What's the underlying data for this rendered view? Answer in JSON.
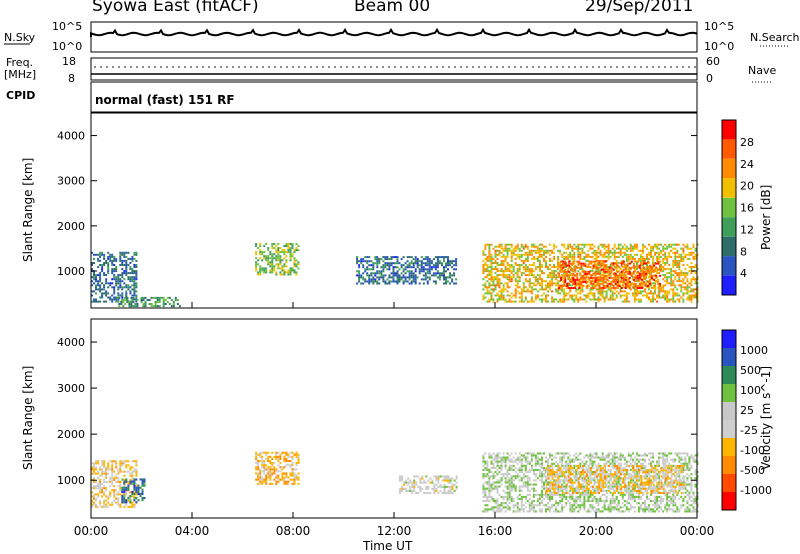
{
  "header": {
    "station": "Syowa East (fitACF)",
    "beam": "Beam 00",
    "date": "29/Sep/2011"
  },
  "top_panels": {
    "noise_left": "N.Sky",
    "noise_right": "N.Search",
    "noise_ticks_left": [
      "10^5",
      "10^0"
    ],
    "noise_ticks_right": [
      "10^5",
      "10^0"
    ],
    "freq_label_1": "Freq.",
    "freq_label_2": "[MHz]",
    "freq_ticks": [
      "18",
      "8"
    ],
    "nave_label": "Nave",
    "nave_ticks": [
      "60",
      "0"
    ],
    "cpid_label": "CPID",
    "cpid_text": "normal (fast) 151 RF"
  },
  "colors": {
    "power": [
      "#1e1eff",
      "#2a55c0",
      "#2e6e6a",
      "#3e9e5a",
      "#6ec23e",
      "#f0c000",
      "#ff8c00",
      "#ff5a00",
      "#ff0000"
    ],
    "velocity": [
      "#ff0000",
      "#ff4a00",
      "#ff8c00",
      "#ffb400",
      "#cfcfcf",
      "#c8c8c8",
      "#6ec23e",
      "#2e8b57",
      "#2a55c0",
      "#1e1eff"
    ]
  },
  "chart_data": [
    {
      "type": "heatmap",
      "title": "",
      "ylabel": "Slant Range [km]",
      "xlabel": "",
      "ylim": [
        180,
        4500
      ],
      "x_ticks": [],
      "y_ticks": [
        "1000",
        "2000",
        "3000",
        "4000"
      ],
      "colorbar": {
        "label": "Power [dB]",
        "ticks": [
          "4",
          "8",
          "12",
          "16",
          "20",
          "24",
          "28"
        ],
        "range": [
          0,
          32
        ]
      },
      "regions": [
        {
          "t0": 0.0,
          "t1": 1.8,
          "r0": 300,
          "r1": 1400,
          "value": 8
        },
        {
          "t0": 1.0,
          "t1": 3.5,
          "r0": 200,
          "r1": 400,
          "value": 12
        },
        {
          "t0": 6.5,
          "t1": 8.2,
          "r0": 900,
          "r1": 1600,
          "value": 16
        },
        {
          "t0": 10.5,
          "t1": 14.5,
          "r0": 700,
          "r1": 1300,
          "value": 8
        },
        {
          "t0": 15.5,
          "t1": 24.0,
          "r0": 300,
          "r1": 1600,
          "value": 20
        },
        {
          "t0": 18.5,
          "t1": 22.5,
          "r0": 600,
          "r1": 1200,
          "value": 26
        }
      ]
    },
    {
      "type": "heatmap",
      "title": "",
      "ylabel": "Slant Range [km]",
      "xlabel": "Time UT",
      "ylim": [
        180,
        4500
      ],
      "x_ticks": [
        "00:00",
        "04:00",
        "08:00",
        "12:00",
        "16:00",
        "20:00",
        "00:00"
      ],
      "y_ticks": [
        "1000",
        "2000",
        "3000",
        "4000"
      ],
      "colorbar": {
        "label": "Velocity [m s^-1]",
        "ticks": [
          "1000",
          "500",
          "100",
          "25",
          "-25",
          "-100",
          "-500",
          "-1000"
        ],
        "range": [
          -1000,
          1000
        ]
      },
      "regions": [
        {
          "t0": 0.0,
          "t1": 1.8,
          "r0": 400,
          "r1": 1400,
          "value": -200
        },
        {
          "t0": 1.2,
          "t1": 2.1,
          "r0": 500,
          "r1": 1000,
          "value": 600
        },
        {
          "t0": 6.5,
          "t1": 8.2,
          "r0": 900,
          "r1": 1600,
          "value": -300
        },
        {
          "t0": 12.2,
          "t1": 14.5,
          "r0": 700,
          "r1": 1100,
          "value": 0
        },
        {
          "t0": 15.5,
          "t1": 24.0,
          "r0": 300,
          "r1": 1600,
          "value": 150
        },
        {
          "t0": 18.0,
          "t1": 23.5,
          "r0": 700,
          "r1": 1300,
          "value": -250
        }
      ]
    }
  ]
}
